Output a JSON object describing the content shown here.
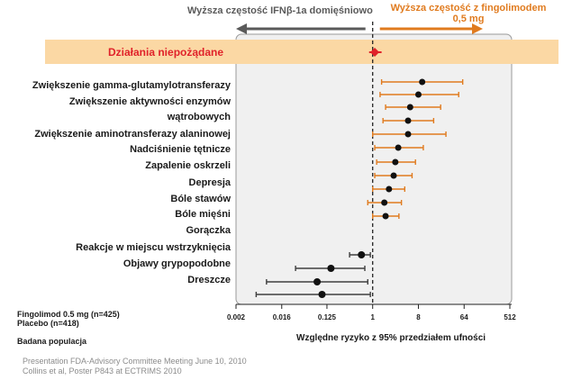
{
  "header": {
    "left_label": "Wyższa częstość IFNβ-1a domięśniowo",
    "right_label": "Wyższa częstość z fingolimodem 0,5 mg"
  },
  "band": {
    "label": "Działania niepożądane"
  },
  "legend": {
    "fingolimod": "Fingolimod 0.5 mg (n=425)",
    "placebo": "Placebo (n=418)"
  },
  "population_label": "Badana populacja",
  "source": {
    "line1": "Presentation FDA-Advisory Committee Meeting June 10, 2010",
    "line2": "Collins et al, Poster P843 at ECTRIMS 2010"
  },
  "colors": {
    "favor_fingolimod": "#e07b1f",
    "favor_ifn": "#3f3f3f",
    "band": "#fbd8a4",
    "overall": "#e0222a",
    "marker": "#111111"
  },
  "chart_data": {
    "type": "forest",
    "title": "",
    "xlabel": "Względne ryzyko z 95% przedziałem ufności",
    "ylabel": "",
    "xscale": "log2",
    "xlim": [
      0.002,
      512
    ],
    "xticks": [
      0.002,
      0.016,
      0.125,
      1,
      8,
      64,
      512
    ],
    "xtick_labels": [
      "0.002",
      "0.016",
      "0.125",
      "1",
      "8",
      "64",
      "512"
    ],
    "reference_line": 1,
    "overall": {
      "label": "Działania niepożądane",
      "estimate": 1.1,
      "ci": [
        0.85,
        1.5
      ]
    },
    "rows": [
      {
        "label": "Zwiększenie gamma-glutamylotransferazy",
        "estimate": 9.5,
        "ci": [
          1.5,
          60
        ]
      },
      {
        "label": "Zwiększenie aktywności enzymów",
        "estimate": 8.0,
        "ci": [
          1.4,
          50
        ],
        "label_continuation": "wątrobowych"
      },
      {
        "label": "Zwiększenie aktywności enzymów wątrobowych",
        "estimate": 5.5,
        "ci": [
          1.8,
          22
        ]
      },
      {
        "label": "wątrobowych",
        "estimate": 5.0,
        "ci": [
          1.6,
          16
        ],
        "continuation": true
      },
      {
        "label": "Zwiększenie aminotransferazy alaninowej",
        "estimate": 5.0,
        "ci": [
          1.0,
          28
        ]
      },
      {
        "label": "Nadciśnienie tętnicze",
        "estimate": 3.2,
        "ci": [
          1.1,
          10
        ]
      },
      {
        "label": "Zapalenie oskrzeli",
        "estimate": 2.8,
        "ci": [
          1.2,
          7
        ]
      },
      {
        "label": "Depresja",
        "estimate": 2.6,
        "ci": [
          1.1,
          6
        ]
      },
      {
        "label": "Bóle stawów",
        "estimate": 2.1,
        "ci": [
          1.0,
          4.3
        ]
      },
      {
        "label": "Bóle mięśni",
        "estimate": 1.7,
        "ci": [
          0.8,
          3.7
        ]
      },
      {
        "label": "Gorączka",
        "estimate": 1.8,
        "ci": [
          1.0,
          3.3
        ]
      },
      {
        "label": "Reakcje w miejscu wstrzyknięcia",
        "estimate": 0.6,
        "ci": [
          0.35,
          0.9
        ]
      },
      {
        "label": "Objawy grypopodobne",
        "estimate": 0.15,
        "ci": [
          0.03,
          0.7
        ]
      },
      {
        "label": "Dreszcze",
        "estimate": 0.08,
        "ci": [
          0.008,
          0.8
        ]
      },
      {
        "label": "",
        "estimate": 0.1,
        "ci": [
          0.005,
          0.9
        ]
      }
    ]
  }
}
